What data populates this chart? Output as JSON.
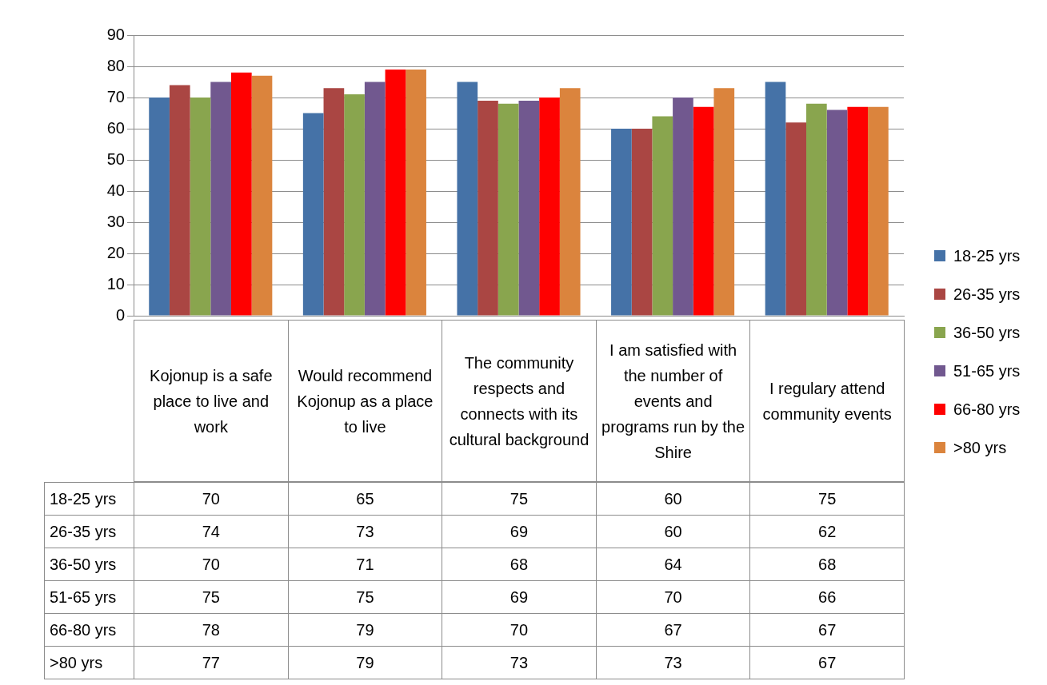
{
  "chart_data": {
    "type": "bar",
    "categories": [
      "Kojonup is a safe place to live and work",
      "Would recommend Kojonup as a place to live",
      "The community respects and connects with its cultural background",
      "I am satisfied with the number of events and programs run by the Shire",
      "I regulary attend community events"
    ],
    "series": [
      {
        "name": "18-25 yrs",
        "color": "#4572a7",
        "values": [
          70,
          65,
          75,
          60,
          75
        ]
      },
      {
        "name": "26-35 yrs",
        "color": "#aa4643",
        "values": [
          74,
          73,
          69,
          60,
          62
        ]
      },
      {
        "name": "36-50 yrs",
        "color": "#89a54e",
        "values": [
          70,
          71,
          68,
          64,
          68
        ]
      },
      {
        "name": "51-65 yrs",
        "color": "#71588f",
        "values": [
          75,
          75,
          69,
          70,
          66
        ]
      },
      {
        "name": "66-80 yrs",
        "color": "#ff0000",
        "values": [
          78,
          79,
          70,
          67,
          67
        ]
      },
      {
        "name": ">80 yrs",
        "color": "#db843d",
        "values": [
          77,
          79,
          73,
          73,
          67
        ]
      }
    ],
    "ylim": [
      0,
      90
    ],
    "yticks": [
      0,
      10,
      20,
      30,
      40,
      50,
      60,
      70,
      80,
      90
    ],
    "grid": "y",
    "legend": "right",
    "data_labels": true
  }
}
